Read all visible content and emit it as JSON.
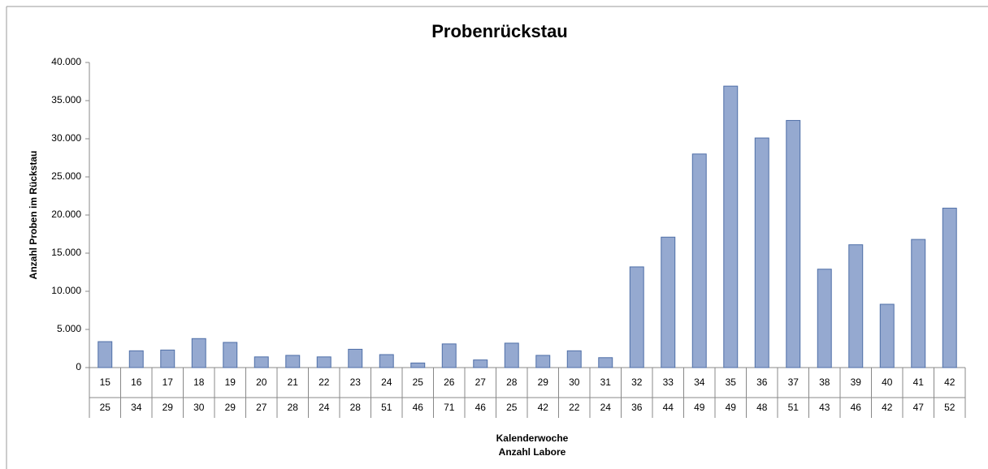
{
  "chart_data": {
    "type": "bar",
    "title": "Probenrückstau",
    "ylabel": "Anzahl Proben im Rückstau",
    "xlabel": [
      "Kalenderwoche",
      "Anzahl Labore"
    ],
    "categories": [
      "15",
      "16",
      "17",
      "18",
      "19",
      "20",
      "21",
      "22",
      "23",
      "24",
      "25",
      "26",
      "27",
      "28",
      "29",
      "30",
      "31",
      "32",
      "33",
      "34",
      "35",
      "36",
      "37",
      "38",
      "39",
      "40",
      "41",
      "42"
    ],
    "secondary_categories": [
      "25",
      "34",
      "29",
      "30",
      "29",
      "27",
      "28",
      "24",
      "28",
      "51",
      "46",
      "71",
      "46",
      "25",
      "42",
      "22",
      "24",
      "36",
      "44",
      "49",
      "49",
      "48",
      "51",
      "43",
      "46",
      "42",
      "47",
      "52"
    ],
    "values": [
      3400,
      2200,
      2300,
      3800,
      3300,
      1400,
      1600,
      1400,
      2400,
      1700,
      600,
      3100,
      1000,
      3200,
      1600,
      2200,
      1300,
      13200,
      17100,
      28000,
      36900,
      30100,
      32400,
      12900,
      16100,
      8300,
      16800,
      20900
    ],
    "color": "#95a9d0",
    "ylim": [
      0,
      40000
    ],
    "yticks": [
      0,
      {
        "value": 5000,
        "label": "5.000"
      },
      {
        "value": 10000,
        "label": "10.000"
      },
      {
        "value": 15000,
        "label": "15.000"
      },
      {
        "value": 20000,
        "label": "20.000"
      },
      {
        "value": 25000,
        "label": "25.000"
      },
      {
        "value": 30000,
        "label": "30.000"
      },
      {
        "value": 35000,
        "label": "35.000"
      },
      {
        "value": 40000,
        "label": "40.000"
      }
    ],
    "grid": false
  }
}
